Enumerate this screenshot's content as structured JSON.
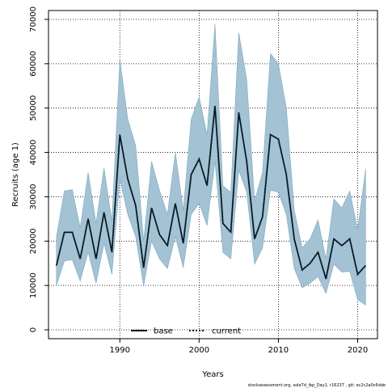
{
  "chart_data": {
    "type": "area",
    "xlabel": "Years",
    "ylabel": "Recruits (age 1)",
    "xlim": [
      1981,
      2022.5
    ],
    "ylim": [
      -2000,
      72000
    ],
    "x_ticks": [
      1990,
      2000,
      2010,
      2020
    ],
    "y_ticks": [
      0,
      10000,
      20000,
      30000,
      40000,
      50000,
      60000,
      70000
    ],
    "grid": true,
    "legend_position": "bottom-center",
    "band_color": "#a3c2d4",
    "band_edge_color": "#7fa9bf",
    "x": [
      1982,
      1983,
      1984,
      1985,
      1986,
      1987,
      1988,
      1989,
      1990,
      1991,
      1992,
      1993,
      1994,
      1995,
      1996,
      1997,
      1998,
      1999,
      2000,
      2001,
      2002,
      2003,
      2004,
      2005,
      2006,
      2007,
      2008,
      2009,
      2010,
      2011,
      2012,
      2013,
      2014,
      2015,
      2016,
      2017,
      2018,
      2019,
      2020,
      2021
    ],
    "series": [
      {
        "name": "base",
        "line_style": "solid",
        "color": "#000000",
        "values": [
          14500,
          22000,
          22000,
          16000,
          25000,
          16000,
          26500,
          17500,
          44000,
          34000,
          28000,
          14000,
          27500,
          21500,
          19000,
          28500,
          19500,
          35000,
          38500,
          32500,
          50500,
          24000,
          22000,
          49000,
          38000,
          20500,
          25500,
          44000,
          43000,
          35000,
          20500,
          13500,
          15000,
          17500,
          11500,
          20500,
          19000,
          20500,
          12500,
          14500
        ]
      },
      {
        "name": "current",
        "line_style": "dotted",
        "color": "#0a2a3c",
        "values": [
          14500,
          22000,
          22000,
          16000,
          25000,
          16000,
          26500,
          17500,
          44000,
          34000,
          28000,
          14000,
          27500,
          21500,
          19000,
          28500,
          19500,
          35000,
          38500,
          32500,
          50500,
          24000,
          22000,
          49000,
          38000,
          20500,
          25500,
          44000,
          43000,
          35000,
          20500,
          13500,
          15000,
          17500,
          11500,
          20500,
          19000,
          20500,
          12500,
          14500
        ]
      }
    ],
    "confidence_band": {
      "lower": [
        10000,
        15500,
        15800,
        11000,
        17500,
        10500,
        19500,
        12500,
        34000,
        26000,
        21000,
        9800,
        20000,
        16000,
        13800,
        21000,
        14000,
        26000,
        28500,
        23500,
        38000,
        17500,
        16000,
        36000,
        31000,
        14800,
        18500,
        31500,
        31000,
        26000,
        13800,
        9500,
        10500,
        12000,
        8200,
        14800,
        13000,
        13200,
        6800,
        5600
      ],
      "upper": [
        21000,
        31300,
        31600,
        23000,
        35500,
        24000,
        36500,
        24500,
        61000,
        47500,
        41500,
        20000,
        38000,
        31500,
        26000,
        40000,
        27000,
        47500,
        52500,
        44000,
        69000,
        32500,
        31000,
        67000,
        56500,
        29000,
        35500,
        62300,
        60000,
        50000,
        27000,
        18500,
        20500,
        24800,
        16000,
        29500,
        27500,
        31300,
        22500,
        36300
      ]
    },
    "footer": "stockassessment.org, sole7d_ibp_Day1, r16237 , git: ec2c2a0c6dde"
  }
}
